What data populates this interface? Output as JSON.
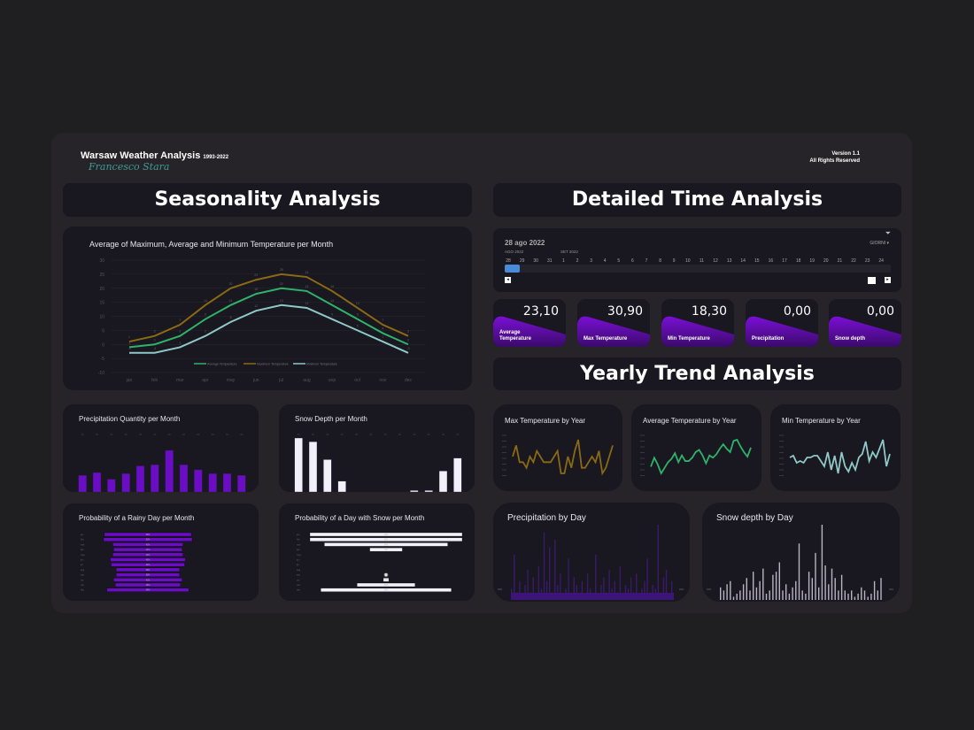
{
  "header": {
    "title": "Warsaw Weather Analysis",
    "years": "1993-2022",
    "author": "Francesco Stara",
    "version": "Version 1.1",
    "rights": "All Rights Reserved"
  },
  "sections": {
    "seasonality": "Seasonality Analysis",
    "detailed": "Detailed Time Analysis",
    "yearly": "Yearly Trend Analysis"
  },
  "timeline": {
    "selected_date": "28 ago 2022",
    "months": [
      "AGO 2022",
      "SET 2022"
    ],
    "days": [
      "28",
      "29",
      "30",
      "31",
      "1",
      "2",
      "3",
      "4",
      "5",
      "6",
      "7",
      "8",
      "9",
      "10",
      "11",
      "12",
      "13",
      "14",
      "15",
      "16",
      "17",
      "18",
      "19",
      "20",
      "21",
      "22",
      "23",
      "24"
    ],
    "granularity": "GIORNI",
    "selected_fraction": 0.04
  },
  "kpis": [
    {
      "value": "23,10",
      "label": "Average Temperature"
    },
    {
      "value": "30,90",
      "label": "Max Temperature"
    },
    {
      "value": "18,30",
      "label": "Min Temperature"
    },
    {
      "value": "0,00",
      "label": "Precipitation"
    },
    {
      "value": "0,00",
      "label": "Snow depth"
    }
  ],
  "colors": {
    "accent": "#6a0dc4",
    "max": "#8a6a14",
    "avg": "#2fb36a",
    "min": "#8fc9c7",
    "snow": "#f2f0f8",
    "card": "#19171f"
  },
  "chart_data": [
    {
      "id": "temp",
      "type": "line",
      "title": "Average of Maximum, Average and Minimum Temperature per Month",
      "categories": [
        "jan",
        "feb",
        "mar",
        "apr",
        "may",
        "jun",
        "jul",
        "aug",
        "sep",
        "oct",
        "nov",
        "dec"
      ],
      "ylim": [
        -10,
        30
      ],
      "yticks": [
        -10,
        -5,
        0,
        5,
        10,
        15,
        20,
        25,
        30
      ],
      "series": [
        {
          "name": "Average Temperature",
          "values": [
            -1,
            0,
            3,
            9,
            14,
            18,
            20,
            19,
            14,
            9,
            4,
            0
          ]
        },
        {
          "name": "Maximum Temperature",
          "values": [
            1,
            3,
            7,
            14,
            20,
            23,
            25,
            24,
            19,
            13,
            7,
            3
          ]
        },
        {
          "name": "Minimum Temperature",
          "values": [
            -3,
            -3,
            -1,
            3,
            8,
            12,
            14,
            13,
            9,
            5,
            1,
            -3
          ]
        }
      ],
      "legend": "bottom"
    },
    {
      "id": "precip",
      "type": "bar",
      "title": "Precipitation Quantity per Month",
      "categories": [
        "jan",
        "feb",
        "mar",
        "apr",
        "may",
        "jun",
        "jul",
        "aug",
        "sep",
        "oct",
        "nov",
        "dec"
      ],
      "values": [
        30,
        35,
        23,
        33,
        47,
        49,
        75,
        49,
        40,
        33,
        33,
        30
      ]
    },
    {
      "id": "snow",
      "type": "bar",
      "title": "Snow Depth per Month",
      "categories": [
        "jan",
        "feb",
        "mar",
        "apr",
        "may",
        "jun",
        "jul",
        "aug",
        "sep",
        "oct",
        "nov",
        "dec"
      ],
      "values": [
        175,
        163,
        105,
        35,
        0,
        0,
        0,
        0,
        5,
        5,
        68,
        110
      ]
    },
    {
      "id": "rainprob",
      "type": "bar",
      "title": "Probability of a Rainy Day per Month",
      "categories": [
        "jan",
        "feb",
        "mar",
        "apr",
        "may",
        "jun",
        "jul",
        "aug",
        "sep",
        "oct",
        "nov",
        "dec"
      ],
      "values": [
        52,
        53,
        42,
        41,
        42,
        45,
        44,
        38,
        38,
        41,
        39,
        49
      ]
    },
    {
      "id": "snowprob",
      "type": "bar",
      "title": "Probability of a Day with Snow per Month",
      "categories": [
        "jan",
        "feb",
        "mar",
        "apr",
        "may",
        "jun",
        "jul",
        "aug",
        "sep",
        "oct",
        "nov",
        "dec"
      ],
      "values": [
        42,
        42,
        34,
        9,
        0,
        0,
        0,
        0,
        0.8,
        1.5,
        16,
        36
      ]
    },
    {
      "id": "maxyear",
      "type": "line",
      "title": "Max Temperature by Year",
      "values": [
        33,
        35,
        32,
        32,
        31,
        33,
        32,
        34,
        33,
        32,
        32,
        32,
        33,
        34,
        30,
        30,
        33,
        31,
        34,
        36,
        31,
        31,
        32,
        33,
        32,
        34,
        30,
        31,
        33,
        35
      ]
    },
    {
      "id": "avgyear",
      "type": "line",
      "title": "Average Temperature by Year",
      "values": [
        8,
        8.8,
        8.2,
        7.4,
        7.9,
        8.4,
        8.7,
        9.2,
        8.4,
        9,
        8.5,
        8.5,
        8.8,
        9.3,
        9.5,
        9,
        8.3,
        9,
        8.8,
        9.1,
        9.6,
        10,
        9.6,
        9.3,
        10.3,
        10.4,
        9.8,
        9.3,
        8.9,
        9.7
      ]
    },
    {
      "id": "minyear",
      "type": "line",
      "title": "Min Temperature by Year",
      "values": [
        -15,
        -14,
        -18,
        -17,
        -18,
        -15,
        -15,
        -14,
        -14,
        -17,
        -20,
        -12,
        -22,
        -14,
        -24,
        -12,
        -20,
        -23,
        -18,
        -22,
        -15,
        -13,
        -6,
        -17,
        -12,
        -15,
        -10,
        -5,
        -20,
        -13
      ]
    },
    {
      "id": "precday",
      "type": "bar",
      "title": "Precipitation by Day",
      "values": [
        3,
        12,
        2,
        5,
        1,
        4,
        8,
        2,
        6,
        1,
        9,
        3,
        18,
        5,
        14,
        2,
        16,
        4,
        7,
        1,
        3,
        11,
        2,
        6,
        4,
        2,
        5,
        1,
        7,
        3,
        2,
        12,
        1,
        4,
        6,
        2,
        8,
        3,
        5,
        2,
        9,
        1,
        4,
        3,
        6,
        2,
        7,
        1,
        3,
        5,
        11,
        2,
        4,
        3,
        20,
        2,
        6,
        8,
        1,
        5
      ]
    },
    {
      "id": "snowday",
      "type": "bar",
      "title": "Snow depth by Day",
      "values": [
        4,
        3,
        5,
        6,
        1,
        2,
        3,
        5,
        7,
        3,
        9,
        4,
        6,
        10,
        2,
        3,
        8,
        9,
        12,
        3,
        5,
        2,
        4,
        6,
        18,
        3,
        2,
        9,
        7,
        15,
        4,
        24,
        11,
        5,
        10,
        7,
        3,
        8,
        3,
        2,
        3,
        1,
        2,
        4,
        3,
        1,
        2,
        6,
        3,
        7
      ]
    }
  ]
}
